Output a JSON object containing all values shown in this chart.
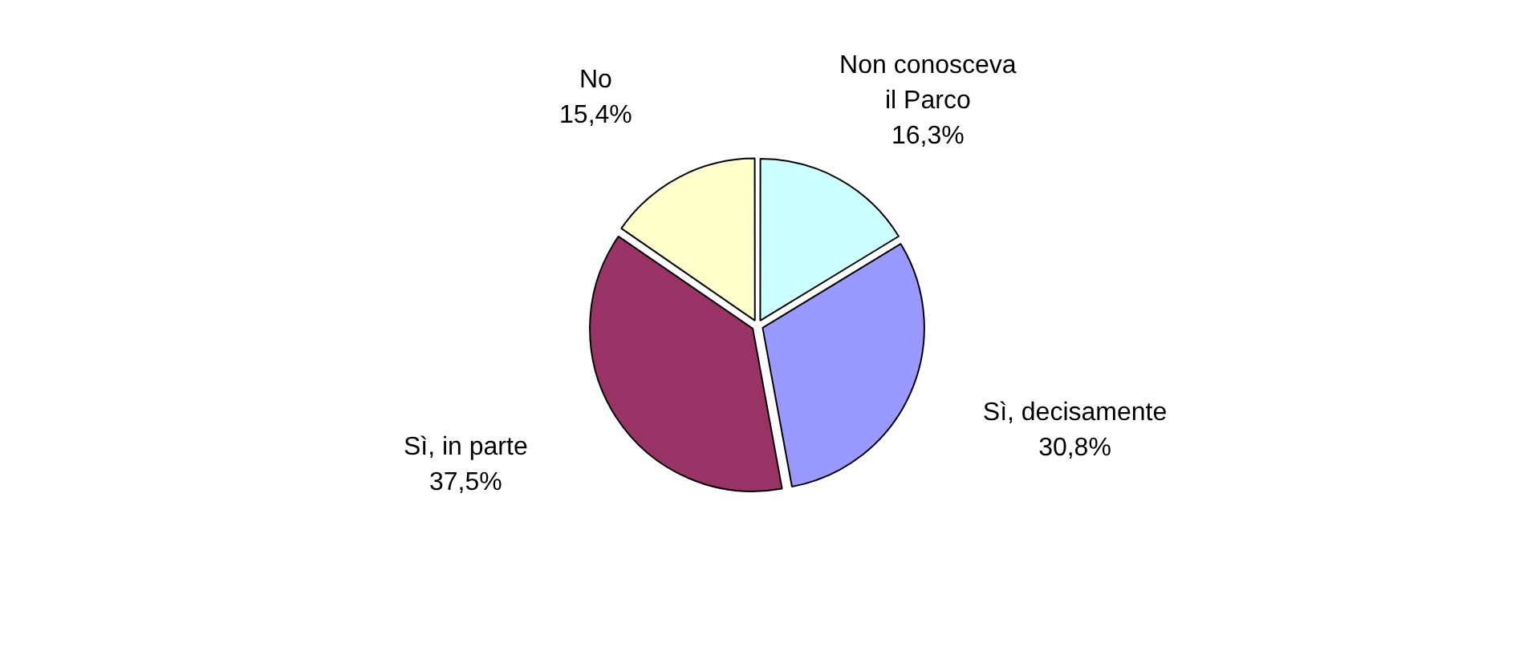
{
  "chart_data": {
    "type": "pie",
    "categories": [
      "Non conosceva il Parco",
      "Sì, decisamente",
      "Sì, in parte",
      "No"
    ],
    "values": [
      16.3,
      30.8,
      37.5,
      15.4
    ],
    "value_labels": [
      "16,3%",
      "30,8%",
      "37,5%",
      "15,4%"
    ],
    "colors": [
      "#ccffff",
      "#9999ff",
      "#993366",
      "#ffffcc"
    ],
    "legend": false
  }
}
